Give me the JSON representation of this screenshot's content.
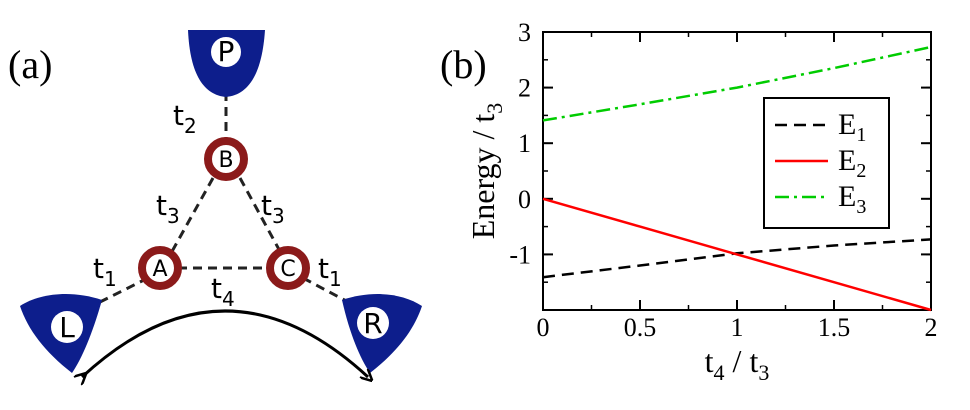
{
  "diagram": {
    "panel_label": "(a)",
    "sites": [
      {
        "id": "A",
        "label": "A"
      },
      {
        "id": "B",
        "label": "B"
      },
      {
        "id": "C",
        "label": "C"
      }
    ],
    "leads": [
      {
        "id": "P",
        "label": "P"
      },
      {
        "id": "L",
        "label": "L"
      },
      {
        "id": "R",
        "label": "R"
      }
    ],
    "hoppings": [
      {
        "id": "t2",
        "main": "t",
        "sub": "2"
      },
      {
        "id": "t3-left",
        "main": "t",
        "sub": "3"
      },
      {
        "id": "t3-right",
        "main": "t",
        "sub": "3"
      },
      {
        "id": "t1-left",
        "main": "t",
        "sub": "1"
      },
      {
        "id": "t1-right",
        "main": "t",
        "sub": "1"
      },
      {
        "id": "t4",
        "main": "t",
        "sub": "4"
      }
    ],
    "colors": {
      "site_ring": "#8b1a1a",
      "lead_fill": "#0d1e8c"
    }
  },
  "chart_data": {
    "panel_label": "(b)",
    "type": "line",
    "xlabel": {
      "main": "t",
      "sub1": "4",
      "mid": " / t",
      "sub2": "3"
    },
    "ylabel": {
      "main": "Energy / t",
      "sub": "3"
    },
    "xlim": [
      0,
      2
    ],
    "ylim": [
      -2,
      3
    ],
    "xticks": [
      "0",
      "0.5",
      "1",
      "1.5",
      "2"
    ],
    "yticks": [
      "-1",
      "0",
      "1",
      "2",
      "3"
    ],
    "grid": false,
    "legend_position": "right",
    "series": [
      {
        "name": "E",
        "sub": "1",
        "color": "#000000",
        "dash": "dashed",
        "x": [
          0,
          0.5,
          1,
          1.5,
          2
        ],
        "y": [
          -1.41,
          -1.2,
          -0.98,
          -0.84,
          -0.73
        ]
      },
      {
        "name": "E",
        "sub": "2",
        "color": "#ff0000",
        "dash": "solid",
        "x": [
          0,
          0.5,
          1,
          1.5,
          2
        ],
        "y": [
          0,
          -0.5,
          -1,
          -1.5,
          -2
        ]
      },
      {
        "name": "E",
        "sub": "3",
        "color": "#00cc00",
        "dash": "dashdot",
        "x": [
          0,
          0.5,
          1,
          1.5,
          2
        ],
        "y": [
          1.41,
          1.7,
          2.0,
          2.35,
          2.73
        ]
      }
    ]
  }
}
